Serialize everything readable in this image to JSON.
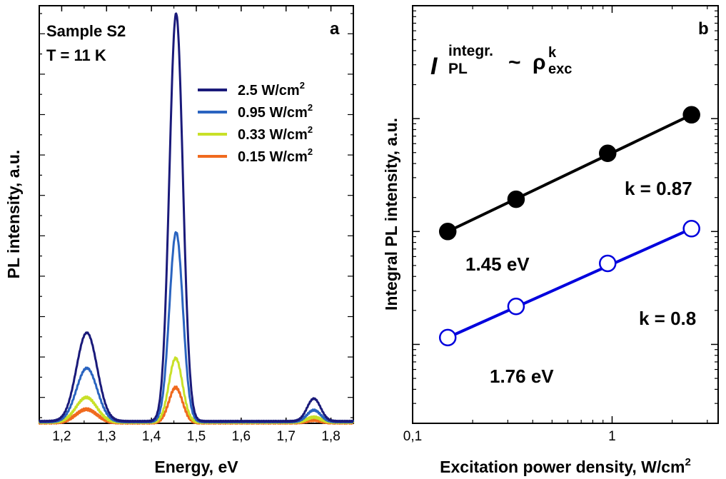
{
  "panel_a": {
    "panel_label": "a",
    "sample_label": "Sample S2",
    "temperature_label": "T = 11 K",
    "xlabel": "Energy, eV",
    "ylabel": "PL intensity, a.u.",
    "xticks": [
      "1,2",
      "1,3",
      "1,4",
      "1,5",
      "1,6",
      "1,7",
      "1,8"
    ],
    "legend": [
      {
        "label": "2.5 W/cm",
        "sup": "2",
        "color": "#1a1a7a"
      },
      {
        "label": "0.95 W/cm",
        "sup": "2",
        "color": "#2a64c0"
      },
      {
        "label": "0.33 W/cm",
        "sup": "2",
        "color": "#c8e028"
      },
      {
        "label": "0.15 W/cm",
        "sup": "2",
        "color": "#f06a1e"
      }
    ]
  },
  "panel_b": {
    "panel_label": "b",
    "formula": {
      "base": "I",
      "sup": "integr.",
      "sub": "PL",
      "tilde": "~",
      "rho": "ρ",
      "rho_sup": "k",
      "rho_sub": "exc"
    },
    "xlabel": "Excitation power density, W/cm",
    "xlabel_sup": "2",
    "ylabel": "Integral PL intensity, a.u.",
    "xticks": [
      "0,1",
      "1"
    ],
    "series_labels": [
      {
        "energy": "1.45 eV",
        "k": "k = 0.87",
        "color": "#000000"
      },
      {
        "energy": "1.76 eV",
        "k": "k = 0.8",
        "color": "#0000dd"
      }
    ]
  },
  "chart_data": [
    {
      "type": "line",
      "title": "",
      "xlabel": "Energy, eV",
      "ylabel": "PL intensity, a.u.",
      "xlim": [
        1.15,
        1.85
      ],
      "ylim": [
        0,
        1.0
      ],
      "grid": false,
      "legend_position": "top-right",
      "x_unit": "eV",
      "peaks_model": "sum of gaussians: amplitude a, center c (eV), width w (eV)",
      "series": [
        {
          "name": "2.5 W/cm2",
          "color": "#1a1a7a",
          "peaks": [
            {
              "a": 0.215,
              "c": 1.256,
              "w": 0.023
            },
            {
              "a": 0.99,
              "c": 1.455,
              "w": 0.015
            },
            {
              "a": 0.055,
              "c": 1.762,
              "w": 0.015
            }
          ],
          "baseline": 0.005
        },
        {
          "name": "0.95 W/cm2",
          "color": "#2a64c0",
          "peaks": [
            {
              "a": 0.13,
              "c": 1.256,
              "w": 0.023
            },
            {
              "a": 0.46,
              "c": 1.455,
              "w": 0.015
            },
            {
              "a": 0.028,
              "c": 1.762,
              "w": 0.015
            }
          ],
          "baseline": 0.004
        },
        {
          "name": "0.33 W/cm2",
          "color": "#c8e028",
          "peaks": [
            {
              "a": 0.06,
              "c": 1.255,
              "w": 0.023
            },
            {
              "a": 0.155,
              "c": 1.454,
              "w": 0.015
            },
            {
              "a": 0.012,
              "c": 1.762,
              "w": 0.015
            }
          ],
          "baseline": 0.003
        },
        {
          "name": "0.15 W/cm2",
          "color": "#f06a1e",
          "peaks": [
            {
              "a": 0.032,
              "c": 1.255,
              "w": 0.023
            },
            {
              "a": 0.085,
              "c": 1.454,
              "w": 0.015
            },
            {
              "a": 0.006,
              "c": 1.762,
              "w": 0.015
            }
          ],
          "baseline": 0.002
        }
      ]
    },
    {
      "type": "scatter",
      "title": "",
      "xlabel": "Excitation power density, W/cm2",
      "ylabel": "Integral PL intensity, a.u.",
      "xscale": "log",
      "yscale": "log",
      "xlim": [
        0.1,
        3.4
      ],
      "ylim": [
        0.0002,
        1.0
      ],
      "legend_position": "none",
      "series": [
        {
          "name": "1.45 eV",
          "marker": "filled-circle",
          "color": "#000000",
          "x": [
            0.15,
            0.33,
            0.95,
            2.5
          ],
          "y": [
            0.01,
            0.0193,
            0.0493,
            0.1081
          ],
          "fit_k": 0.87
        },
        {
          "name": "1.76 eV",
          "marker": "open-circle",
          "color": "#0000dd",
          "x": [
            0.15,
            0.33,
            0.95,
            2.5
          ],
          "y": [
            0.00115,
            0.00217,
            0.00522,
            0.0106
          ],
          "fit_k": 0.8
        }
      ]
    }
  ]
}
